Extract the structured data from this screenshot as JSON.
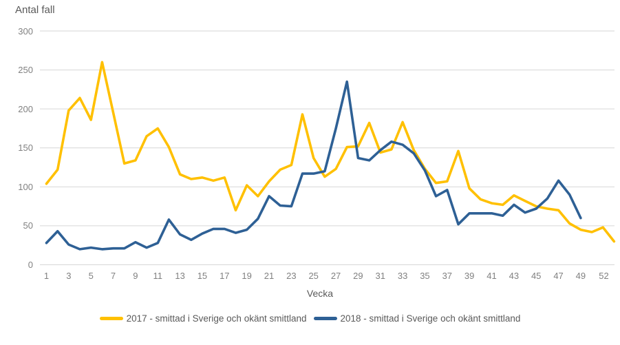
{
  "chart_data": {
    "type": "line",
    "value_axis_title": "Antal fall",
    "xlabel": "Vecka",
    "ylim": [
      0,
      300
    ],
    "y_ticks": [
      0,
      50,
      100,
      150,
      200,
      250,
      300
    ],
    "x_tick_labels": [
      1,
      3,
      5,
      7,
      9,
      11,
      13,
      15,
      17,
      19,
      21,
      23,
      25,
      27,
      29,
      31,
      33,
      35,
      37,
      39,
      41,
      43,
      45,
      47,
      49,
      52
    ],
    "x": [
      1,
      2,
      3,
      4,
      5,
      6,
      7,
      8,
      9,
      10,
      11,
      12,
      13,
      14,
      15,
      16,
      17,
      18,
      19,
      20,
      21,
      22,
      23,
      24,
      25,
      26,
      27,
      28,
      29,
      30,
      31,
      32,
      33,
      34,
      35,
      36,
      37,
      38,
      39,
      40,
      41,
      42,
      43,
      44,
      45,
      46,
      47,
      48,
      49,
      50,
      51,
      52
    ],
    "grid": "horizontal",
    "legend_position": "bottom",
    "series": [
      {
        "name": "2017 - smittad i Sverige och okänt smittland",
        "color": "#FFC000",
        "values": [
          104,
          122,
          198,
          214,
          186,
          260,
          195,
          130,
          134,
          165,
          175,
          151,
          116,
          110,
          112,
          108,
          112,
          70,
          102,
          88,
          107,
          122,
          128,
          193,
          137,
          113,
          123,
          151,
          152,
          182,
          144,
          148,
          183,
          147,
          123,
          105,
          107,
          146,
          98,
          84,
          79,
          77,
          89,
          82,
          75,
          72,
          70,
          53,
          45,
          42,
          48,
          30
        ]
      },
      {
        "name": "2018 - smittad i Sverige och okänt smittland",
        "color": "#2E6095",
        "values": [
          28,
          43,
          26,
          20,
          22,
          20,
          21,
          21,
          29,
          22,
          28,
          58,
          39,
          32,
          40,
          46,
          46,
          41,
          45,
          59,
          88,
          76,
          75,
          117,
          117,
          120,
          175,
          235,
          137,
          134,
          147,
          158,
          154,
          143,
          121,
          88,
          96,
          52,
          66,
          66,
          66,
          63,
          77,
          67,
          72,
          85,
          108,
          90,
          60,
          null,
          null,
          null
        ]
      }
    ],
    "gridline_color": "#D6D6D6"
  }
}
